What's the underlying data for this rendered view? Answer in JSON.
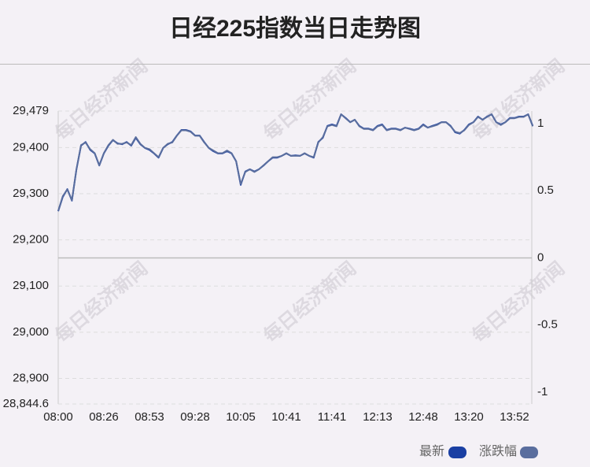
{
  "chart_data": {
    "type": "line",
    "title": "日经225指数当日走势图",
    "watermark": "每日经济新闻",
    "categories": [
      "08:00",
      null,
      null,
      null,
      null,
      null,
      null,
      null,
      null,
      null,
      "08:26",
      null,
      null,
      null,
      null,
      null,
      null,
      null,
      null,
      null,
      "08:53",
      null,
      null,
      null,
      null,
      null,
      null,
      null,
      null,
      null,
      "09:28",
      null,
      null,
      null,
      null,
      null,
      null,
      null,
      null,
      null,
      "10:05",
      null,
      null,
      null,
      null,
      null,
      null,
      null,
      null,
      null,
      "10:41",
      null,
      null,
      null,
      null,
      null,
      null,
      null,
      null,
      null,
      "11:41",
      null,
      null,
      null,
      null,
      null,
      null,
      null,
      null,
      null,
      "12:13",
      null,
      null,
      null,
      null,
      null,
      null,
      null,
      null,
      null,
      "12:48",
      null,
      null,
      null,
      null,
      null,
      null,
      null,
      null,
      null,
      "13:20",
      null,
      null,
      null,
      null,
      null,
      null,
      null,
      null,
      null,
      "13:52",
      null,
      null,
      null,
      null
    ],
    "series": [
      {
        "name": "最新",
        "color": "#1a3fa3",
        "values": [
          29262,
          29293,
          29310,
          29285,
          29353,
          29404,
          29412,
          29395,
          29387,
          29361,
          29387,
          29404,
          29416,
          29409,
          29407,
          29412,
          29404,
          29421,
          29407,
          29399,
          29395,
          29387,
          29378,
          29399,
          29407,
          29412,
          29426,
          29438,
          29438,
          29435,
          29426,
          29426,
          29412,
          29399,
          29392,
          29387,
          29387,
          29392,
          29387,
          29370,
          29319,
          29348,
          29353,
          29348,
          29353,
          29361,
          29370,
          29378,
          29378,
          29382,
          29387,
          29382,
          29383,
          29382,
          29387,
          29382,
          29378,
          29412,
          29421,
          29447,
          29450,
          29447,
          29472,
          29464,
          29455,
          29460,
          29447,
          29441,
          29441,
          29438,
          29447,
          29450,
          29438,
          29441,
          29441,
          29438,
          29443,
          29441,
          29438,
          29441,
          29450,
          29443,
          29447,
          29450,
          29455,
          29455,
          29447,
          29433,
          29430,
          29438,
          29450,
          29455,
          29467,
          29460,
          29467,
          29472,
          29455,
          29450,
          29455,
          29464,
          29464,
          29467,
          29467,
          29472,
          29447
        ]
      },
      {
        "name": "涨跌幅",
        "color": "#5a6e9e",
        "axis": "y2",
        "values": [
          0.35,
          0.46,
          0.51,
          0.43,
          0.66,
          0.84,
          0.86,
          0.81,
          0.78,
          0.69,
          0.78,
          0.84,
          0.88,
          0.85,
          0.85,
          0.86,
          0.84,
          0.9,
          0.85,
          0.82,
          0.81,
          0.78,
          0.75,
          0.82,
          0.85,
          0.86,
          0.91,
          0.95,
          0.95,
          0.94,
          0.91,
          0.91,
          0.86,
          0.82,
          0.8,
          0.78,
          0.78,
          0.8,
          0.78,
          0.72,
          0.55,
          0.64,
          0.66,
          0.64,
          0.66,
          0.69,
          0.72,
          0.75,
          0.75,
          0.76,
          0.78,
          0.76,
          0.76,
          0.76,
          0.78,
          0.76,
          0.75,
          0.86,
          0.9,
          0.98,
          0.99,
          0.98,
          1.07,
          1.04,
          1.01,
          1.03,
          0.98,
          0.96,
          0.96,
          0.95,
          0.98,
          0.99,
          0.95,
          0.96,
          0.96,
          0.95,
          0.97,
          0.96,
          0.95,
          0.96,
          0.99,
          0.97,
          0.98,
          0.99,
          1.01,
          1.01,
          0.98,
          0.94,
          0.93,
          0.95,
          0.99,
          1.01,
          1.05,
          1.03,
          1.05,
          1.07,
          1.01,
          0.99,
          1.01,
          1.04,
          1.04,
          1.05,
          1.05,
          1.07,
          0.98
        ]
      }
    ],
    "ylim": [
      28844.6,
      29479
    ],
    "yticks": [
      {
        "value": 28844.6,
        "label": "28,844.6"
      },
      {
        "value": 28900,
        "label": "28,900"
      },
      {
        "value": 29000,
        "label": "29,000"
      },
      {
        "value": 29100,
        "label": "29,100"
      },
      {
        "value": 29200,
        "label": "29,200"
      },
      {
        "value": 29300,
        "label": "29,300"
      },
      {
        "value": 29400,
        "label": "29,400"
      },
      {
        "value": 29479,
        "label": "29,479"
      }
    ],
    "y2lim": [
      -1.088,
      1.094
    ],
    "y2ticks": [
      -1,
      -0.5,
      0,
      0.5,
      1
    ],
    "grid": true
  }
}
